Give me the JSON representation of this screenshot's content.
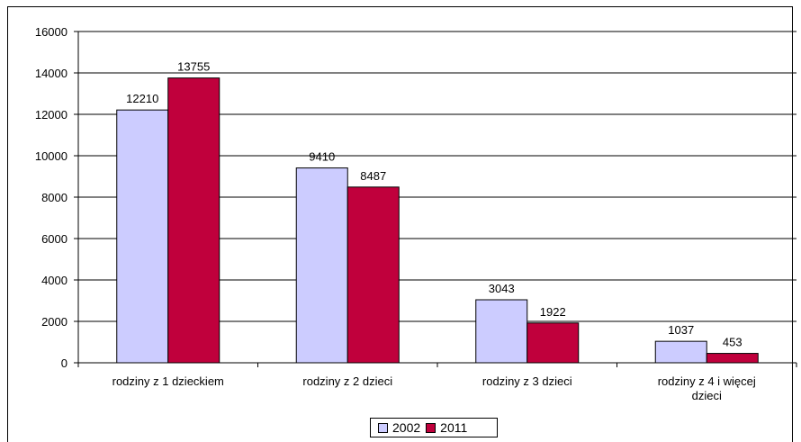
{
  "chart_data": {
    "type": "bar",
    "categories": [
      [
        "rodziny z 1 dzieckiem"
      ],
      [
        "rodziny z 2 dzieci"
      ],
      [
        "rodziny z 3 dzieci"
      ],
      [
        "rodziny z 4 i więcej",
        "dzieci"
      ]
    ],
    "series": [
      {
        "name": "2002",
        "color": "#ccccff",
        "values": [
          12210,
          9410,
          3043,
          1037
        ]
      },
      {
        "name": "2011",
        "color": "#c0003c",
        "values": [
          13755,
          8487,
          1922,
          453
        ]
      }
    ],
    "ylim": [
      0,
      16000
    ],
    "yticks": [
      0,
      2000,
      4000,
      6000,
      8000,
      10000,
      12000,
      14000,
      16000
    ],
    "grid": true,
    "legend_position": "bottom"
  }
}
